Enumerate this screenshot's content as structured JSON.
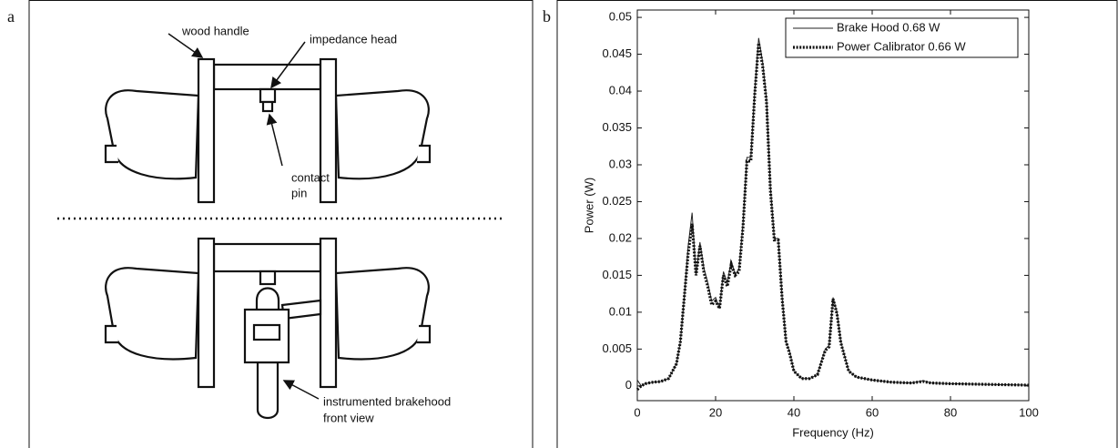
{
  "figure": {
    "panel_labels": [
      "a",
      "b"
    ]
  },
  "diagram": {
    "labels": {
      "wood_handle": "wood handle",
      "impedance_head": "impedance head",
      "contact_pin": [
        "contact",
        "pin"
      ],
      "brakehood": [
        "instrumented brakehood",
        "front view"
      ]
    }
  },
  "chart_data": {
    "type": "line",
    "x_label": "Frequency (Hz)",
    "y_label": "Power (W)",
    "xlim": [
      0,
      100
    ],
    "ylim": [
      -0.002,
      0.051
    ],
    "xticks": [
      0,
      20,
      40,
      60,
      80,
      100
    ],
    "yticks": [
      0,
      0.005,
      0.01,
      0.015,
      0.02,
      0.025,
      0.03,
      0.035,
      0.04,
      0.045,
      0.05
    ],
    "legend": "upper-right",
    "x": [
      0,
      1,
      2,
      4,
      6,
      8,
      10,
      11,
      12,
      13,
      14,
      15,
      16,
      17,
      18,
      19,
      20,
      21,
      22,
      23,
      24,
      25,
      26,
      27,
      28,
      29,
      30,
      31,
      32,
      33,
      34,
      35,
      36,
      37,
      38,
      39,
      40,
      42,
      44,
      46,
      48,
      49,
      50,
      51,
      52,
      54,
      56,
      60,
      65,
      70,
      73,
      75,
      80,
      90,
      100
    ],
    "series": [
      {
        "name": "Brake Hood 0.68 W",
        "color": "#222222",
        "line_style": "solid",
        "values": [
          0.0008,
          0,
          0.0003,
          0.0005,
          0.0006,
          0.001,
          0.003,
          0.006,
          0.012,
          0.019,
          0.0235,
          0.015,
          0.0195,
          0.016,
          0.014,
          0.0115,
          0.012,
          0.0105,
          0.0155,
          0.014,
          0.017,
          0.015,
          0.016,
          0.022,
          0.031,
          0.031,
          0.04,
          0.0472,
          0.044,
          0.039,
          0.027,
          0.02,
          0.02,
          0.012,
          0.006,
          0.0045,
          0.002,
          0.001,
          0.001,
          0.0015,
          0.005,
          0.0055,
          0.012,
          0.01,
          0.006,
          0.002,
          0.0012,
          0.0008,
          0.0005,
          0.0004,
          0.0007,
          0.0004,
          0.0003,
          0.0002,
          0.0001
        ]
      },
      {
        "name": "Power Calibrator  0.66 W",
        "color": "#111111",
        "line_style": "dotted",
        "values": [
          -0.0005,
          0,
          0.0003,
          0.0005,
          0.0006,
          0.001,
          0.003,
          0.006,
          0.012,
          0.018,
          0.022,
          0.015,
          0.019,
          0.0155,
          0.0135,
          0.011,
          0.0115,
          0.0105,
          0.015,
          0.0135,
          0.0165,
          0.015,
          0.0155,
          0.0215,
          0.0305,
          0.0305,
          0.0395,
          0.0465,
          0.0435,
          0.0385,
          0.0265,
          0.0198,
          0.0198,
          0.0118,
          0.006,
          0.0042,
          0.002,
          0.001,
          0.001,
          0.0015,
          0.0048,
          0.0053,
          0.0118,
          0.0098,
          0.0058,
          0.002,
          0.0012,
          0.0008,
          0.0005,
          0.0004,
          0.0006,
          0.0004,
          0.0003,
          0.0002,
          0.0001
        ]
      }
    ]
  }
}
